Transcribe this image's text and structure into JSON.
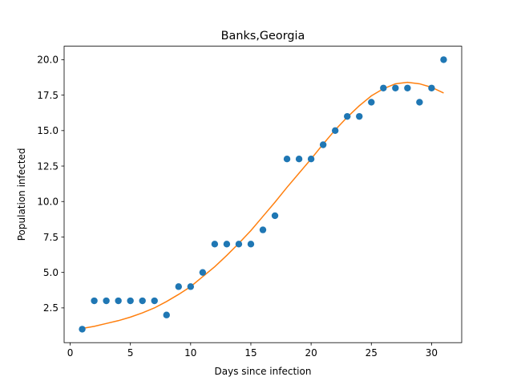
{
  "chart_data": {
    "type": "scatter",
    "title": "Banks,Georgia",
    "xlabel": "Days since infection",
    "ylabel": "Population infected",
    "xlim": [
      -0.5,
      32.5
    ],
    "ylim": [
      0.05,
      20.95
    ],
    "xticks": [
      0,
      5,
      10,
      15,
      20,
      25,
      30
    ],
    "xtick_labels": [
      "0",
      "5",
      "10",
      "15",
      "20",
      "25",
      "30"
    ],
    "yticks": [
      2.5,
      5.0,
      7.5,
      10.0,
      12.5,
      15.0,
      17.5,
      20.0
    ],
    "ytick_labels": [
      "2.5",
      "5.0",
      "7.5",
      "10.0",
      "12.5",
      "15.0",
      "17.5",
      "20.0"
    ],
    "grid": false,
    "series": [
      {
        "kind": "scatter",
        "color": "#1f77b4",
        "x": [
          1,
          2,
          3,
          4,
          5,
          6,
          7,
          8,
          9,
          10,
          11,
          12,
          13,
          14,
          15,
          16,
          17,
          18,
          19,
          20,
          21,
          22,
          23,
          24,
          25,
          26,
          27,
          28,
          29,
          30,
          31
        ],
        "y": [
          1,
          3,
          3,
          3,
          3,
          3,
          3,
          2,
          4,
          4,
          5,
          7,
          7,
          7,
          7,
          8,
          9,
          13,
          13,
          13,
          14,
          15,
          16,
          16,
          17,
          18,
          18,
          18,
          17,
          18,
          20
        ]
      },
      {
        "kind": "line",
        "color": "#ff7f0e",
        "x": [
          1,
          2,
          3,
          4,
          5,
          6,
          7,
          8,
          9,
          10,
          11,
          12,
          13,
          14,
          15,
          16,
          17,
          18,
          19,
          20,
          21,
          22,
          23,
          24,
          25,
          26,
          27,
          28,
          29,
          30,
          31
        ],
        "y": [
          1.05,
          1.2,
          1.4,
          1.6,
          1.85,
          2.15,
          2.5,
          2.95,
          3.45,
          4.0,
          4.7,
          5.4,
          6.2,
          7.05,
          7.95,
          8.95,
          9.95,
          11.0,
          12.0,
          13.0,
          14.05,
          15.05,
          15.95,
          16.75,
          17.45,
          17.95,
          18.3,
          18.4,
          18.3,
          18.05,
          17.65
        ]
      }
    ]
  }
}
